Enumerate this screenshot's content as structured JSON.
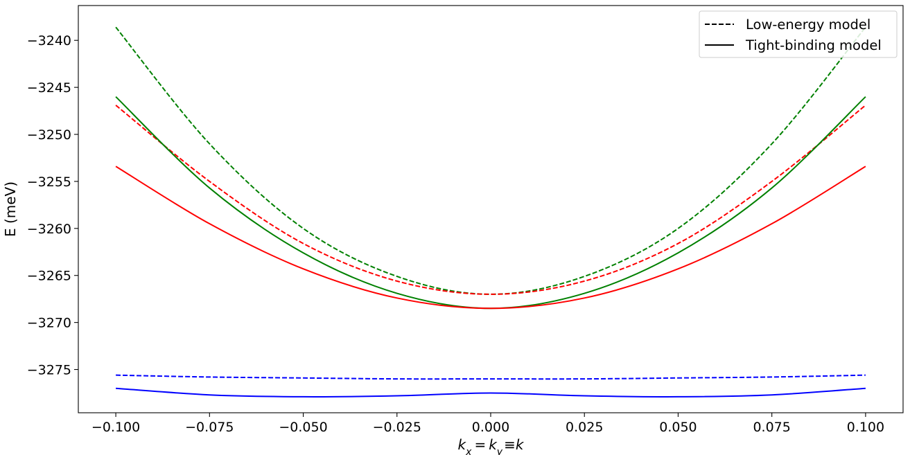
{
  "chart_data": {
    "type": "line",
    "title": "",
    "xlabel": "k_x = k_y ≡ k",
    "ylabel": "E (meV)",
    "xlim": [
      -0.11,
      0.11
    ],
    "ylim": [
      -3279.6,
      -3236.3
    ],
    "xticks": [
      -0.1,
      -0.075,
      -0.05,
      -0.025,
      0.0,
      0.025,
      0.05,
      0.075,
      0.1
    ],
    "xtick_labels": [
      "−0.100",
      "−0.075",
      "−0.050",
      "−0.025",
      "0.000",
      "0.025",
      "0.050",
      "0.075",
      "0.100"
    ],
    "yticks": [
      -3240,
      -3245,
      -3250,
      -3255,
      -3260,
      -3265,
      -3270,
      -3275
    ],
    "ytick_labels": [
      "−3240",
      "−3245",
      "−3250",
      "−3255",
      "−3260",
      "−3265",
      "−3270",
      "−3275"
    ],
    "grid": false,
    "legend": {
      "placement": "top-right",
      "entries": [
        {
          "label": "Low-energy model",
          "style": "dashed",
          "color": "#000000"
        },
        {
          "label": "Tight-binding model",
          "style": "solid",
          "color": "#000000"
        }
      ]
    },
    "series": [
      {
        "color": "#008000",
        "style": "dashed",
        "x": [
          -0.1,
          -0.075,
          -0.05,
          -0.025,
          0.0,
          0.025,
          0.05,
          0.075,
          0.1
        ],
        "y": [
          -3238.6,
          -3251.0,
          -3260.0,
          -3265.1,
          -3267.0,
          -3265.1,
          -3260.0,
          -3251.0,
          -3238.6
        ]
      },
      {
        "color": "#ff0000",
        "style": "dashed",
        "x": [
          -0.1,
          -0.075,
          -0.05,
          -0.025,
          0.0,
          0.025,
          0.05,
          0.075,
          0.1
        ],
        "y": [
          -3246.9,
          -3255.0,
          -3261.6,
          -3265.6,
          -3267.0,
          -3265.6,
          -3261.6,
          -3255.0,
          -3246.9
        ]
      },
      {
        "color": "#008000",
        "style": "solid",
        "x": [
          -0.1,
          -0.075,
          -0.05,
          -0.025,
          0.0,
          0.025,
          0.05,
          0.075,
          0.1
        ],
        "y": [
          -3246.0,
          -3255.7,
          -3262.6,
          -3266.9,
          -3268.5,
          -3266.9,
          -3262.6,
          -3255.7,
          -3246.0
        ]
      },
      {
        "color": "#ff0000",
        "style": "solid",
        "x": [
          -0.1,
          -0.075,
          -0.05,
          -0.025,
          0.0,
          0.025,
          0.05,
          0.075,
          0.1
        ],
        "y": [
          -3253.4,
          -3259.5,
          -3264.3,
          -3267.4,
          -3268.5,
          -3267.4,
          -3264.3,
          -3259.5,
          -3253.4
        ]
      },
      {
        "color": "#0000ff",
        "style": "dashed",
        "x": [
          -0.1,
          -0.075,
          -0.05,
          -0.025,
          0.0,
          0.025,
          0.05,
          0.075,
          0.1
        ],
        "y": [
          -3275.6,
          -3275.8,
          -3275.9,
          -3276.0,
          -3276.0,
          -3276.0,
          -3275.9,
          -3275.8,
          -3275.6
        ]
      },
      {
        "color": "#0000ff",
        "style": "solid",
        "x": [
          -0.1,
          -0.075,
          -0.05,
          -0.025,
          0.0,
          0.025,
          0.05,
          0.075,
          0.1
        ],
        "y": [
          -3277.0,
          -3277.7,
          -3277.9,
          -3277.8,
          -3277.5,
          -3277.8,
          -3277.9,
          -3277.7,
          -3277.0
        ]
      }
    ]
  }
}
